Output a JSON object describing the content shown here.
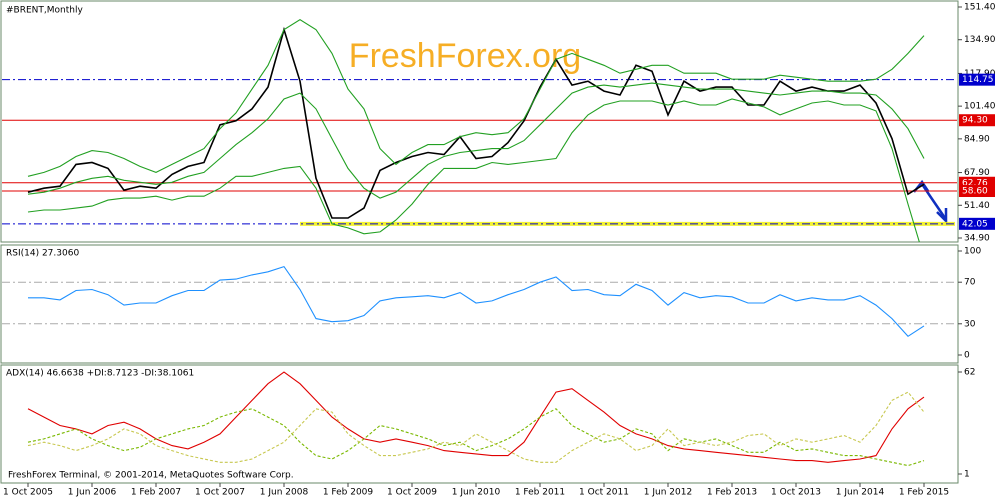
{
  "footer": "FreshForex Terminal, © 2001-2014, MetaQuotes Software Corp.",
  "watermark": "FreshForex.org",
  "chart_data": [
    {
      "type": "line",
      "title": "#BRENT,Monthly",
      "categories": [
        "1 Oct 2005",
        null,
        null,
        null,
        "1 Jun 2006",
        null,
        null,
        null,
        "1 Feb 2007",
        null,
        null,
        null,
        "1 Oct 2007",
        null,
        null,
        null,
        "1 Jun 2008",
        null,
        null,
        null,
        "1 Feb 2009",
        null,
        null,
        null,
        "1 Oct 2009",
        null,
        null,
        null,
        "1 Jun 2010",
        null,
        null,
        null,
        "1 Feb 2011",
        null,
        null,
        null,
        "1 Oct 2011",
        null,
        null,
        null,
        "1 Jun 2012",
        null,
        null,
        null,
        "1 Feb 2013",
        null,
        null,
        null,
        "1 Oct 2013",
        null,
        null,
        null,
        "1 Jun 2014",
        null,
        null,
        null,
        "1 Feb 2015"
      ],
      "series": [
        {
          "color": "#000000",
          "values": [
            58,
            60,
            61,
            72,
            73,
            70,
            59,
            61,
            60,
            67,
            71,
            73,
            92,
            94,
            100,
            111,
            140,
            114,
            65,
            45,
            45,
            50,
            69,
            73,
            76,
            78,
            77,
            86,
            75,
            76,
            83,
            94,
            111,
            125,
            112,
            114,
            109,
            107,
            122,
            119,
            97,
            114,
            109,
            111,
            111,
            102,
            102,
            114,
            109,
            111,
            109,
            109,
            112,
            103,
            85,
            57,
            62
          ]
        },
        {
          "color": "#22a022",
          "values": [
            66,
            68,
            71,
            76,
            79,
            78,
            75,
            71,
            68,
            72,
            76,
            80,
            90,
            98,
            110,
            122,
            140,
            145,
            140,
            128,
            110,
            100,
            80,
            72,
            78,
            82,
            82,
            86,
            88,
            87,
            88,
            95,
            110,
            125,
            128,
            125,
            122,
            118,
            120,
            122,
            122,
            118,
            118,
            118,
            115,
            115,
            115,
            117,
            116,
            115,
            114,
            114,
            114,
            115,
            120,
            128,
            137
          ]
        },
        {
          "color": "#22a022",
          "values": [
            57,
            58,
            60,
            63,
            65,
            66,
            64,
            63,
            62,
            63,
            66,
            68,
            75,
            82,
            88,
            95,
            105,
            108,
            100,
            85,
            70,
            60,
            55,
            58,
            65,
            72,
            76,
            78,
            79,
            80,
            80,
            84,
            92,
            100,
            108,
            111,
            112,
            111,
            112,
            113,
            112,
            111,
            110,
            110,
            110,
            109,
            108,
            107,
            108,
            109,
            109,
            108,
            108,
            107,
            100,
            90,
            75
          ]
        },
        {
          "color": "#22a022",
          "values": [
            48,
            49,
            49,
            50,
            51,
            54,
            55,
            55,
            56,
            54,
            56,
            56,
            60,
            66,
            66,
            68,
            70,
            71,
            60,
            42,
            40,
            37,
            38,
            44,
            52,
            62,
            70,
            70,
            70,
            73,
            72,
            73,
            74,
            75,
            88,
            97,
            102,
            104,
            104,
            104,
            102,
            104,
            102,
            102,
            105,
            103,
            101,
            97,
            100,
            103,
            104,
            102,
            102,
            99,
            80,
            52,
            25
          ]
        }
      ],
      "ylim": [
        34.9,
        151.4
      ],
      "yticks": [
        {
          "value": 151.4,
          "label": "151.40"
        },
        {
          "value": 134.9,
          "label": "134.90"
        },
        {
          "value": 117.9,
          "label": "117.90"
        },
        {
          "value": 101.4,
          "label": "101.40"
        },
        {
          "value": 84.9,
          "label": "84.90"
        },
        {
          "value": 67.9,
          "label": "67.90"
        },
        {
          "value": 51.4,
          "label": "51.40"
        },
        {
          "value": 34.9,
          "label": "34.90"
        }
      ],
      "levels": [
        {
          "value": 114.75,
          "label": "114.75",
          "color": "#0000cc",
          "dash": true
        },
        {
          "value": 94.3,
          "label": "94.30",
          "color": "#e00000",
          "dash": false
        },
        {
          "value": 62.76,
          "label": "62.76",
          "color": "#e00000",
          "dash": false
        },
        {
          "value": 58.6,
          "label": "58.60",
          "color": "#e00000",
          "dash": false
        },
        {
          "value": 42.05,
          "label": "42.05",
          "color": "#0000cc",
          "dash": true,
          "highlight": "#f0f000"
        }
      ]
    },
    {
      "type": "line",
      "title": "RSI(14) 27.3060",
      "series": [
        {
          "color": "#1e90ff",
          "values": [
            55,
            55,
            53,
            62,
            63,
            58,
            48,
            50,
            50,
            57,
            62,
            62,
            72,
            73,
            77,
            80,
            85,
            63,
            35,
            32,
            33,
            38,
            52,
            55,
            56,
            57,
            55,
            60,
            50,
            52,
            58,
            63,
            70,
            75,
            62,
            63,
            58,
            57,
            68,
            62,
            48,
            60,
            55,
            57,
            56,
            50,
            50,
            58,
            52,
            55,
            53,
            53,
            57,
            48,
            35,
            18,
            28
          ]
        }
      ],
      "ylim": [
        0,
        100
      ],
      "yticks": [
        100,
        70,
        30,
        0
      ],
      "levels": [
        {
          "value": 70,
          "color": "#aaaaaa",
          "dash": true
        },
        {
          "value": 30,
          "color": "#aaaaaa",
          "dash": true
        }
      ]
    },
    {
      "type": "line",
      "title": "ADX(14) 46.6638 +DI:8.7123 -DI:38.1061",
      "series": [
        {
          "color": "#e00000",
          "values": [
            40,
            35,
            30,
            28,
            25,
            30,
            32,
            28,
            22,
            18,
            16,
            20,
            25,
            35,
            45,
            55,
            62,
            55,
            45,
            35,
            28,
            22,
            20,
            22,
            20,
            18,
            15,
            14,
            13,
            12,
            12,
            20,
            35,
            50,
            52,
            45,
            38,
            30,
            25,
            22,
            18,
            16,
            15,
            14,
            13,
            12,
            11,
            10,
            9,
            9,
            8,
            9,
            10,
            12,
            28,
            40,
            47
          ],
          "dash": false
        },
        {
          "color": "#7ab800",
          "values": [
            20,
            22,
            25,
            28,
            22,
            18,
            15,
            17,
            22,
            25,
            28,
            30,
            35,
            38,
            40,
            35,
            30,
            20,
            12,
            10,
            15,
            22,
            30,
            28,
            25,
            22,
            18,
            20,
            15,
            18,
            22,
            28,
            35,
            40,
            30,
            25,
            20,
            22,
            28,
            25,
            15,
            22,
            20,
            22,
            18,
            14,
            14,
            20,
            15,
            16,
            14,
            12,
            12,
            10,
            8,
            6,
            9
          ],
          "dash": true
        },
        {
          "color": "#c8c850",
          "values": [
            18,
            20,
            18,
            15,
            18,
            22,
            28,
            25,
            18,
            15,
            12,
            10,
            8,
            8,
            10,
            15,
            20,
            30,
            40,
            38,
            25,
            18,
            12,
            12,
            14,
            16,
            20,
            18,
            25,
            20,
            15,
            10,
            8,
            8,
            15,
            20,
            25,
            22,
            15,
            18,
            28,
            18,
            20,
            18,
            20,
            24,
            25,
            18,
            22,
            20,
            22,
            24,
            20,
            30,
            45,
            50,
            38
          ],
          "dash": true
        }
      ],
      "ylim": [
        1,
        62
      ],
      "yticks": [
        62,
        1
      ]
    }
  ]
}
